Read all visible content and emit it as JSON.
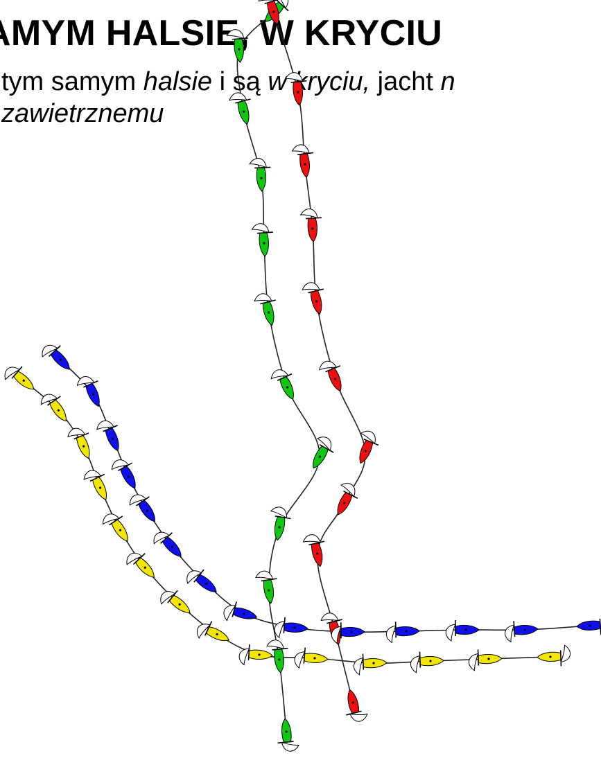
{
  "slide": {
    "title": "AMYM HALSIE, W KRYCIU",
    "subtitle_line1_part1": "tym samym ",
    "subtitle_line1_italic1": "halsie",
    "subtitle_line1_part2": " i są ",
    "subtitle_line1_italic2": "w kryciu,",
    "subtitle_line1_part3": " jacht ",
    "subtitle_line1_italic3": "n",
    "subtitle_line2_italic": "zawietrznemu"
  },
  "diagram": {
    "boats": [
      {
        "name": "green-boat",
        "color": "#10c810"
      },
      {
        "name": "red-boat",
        "color": "#ee1010"
      },
      {
        "name": "blue-boat",
        "color": "#1010ee"
      },
      {
        "name": "yellow-boat",
        "color": "#f3e600"
      }
    ]
  }
}
